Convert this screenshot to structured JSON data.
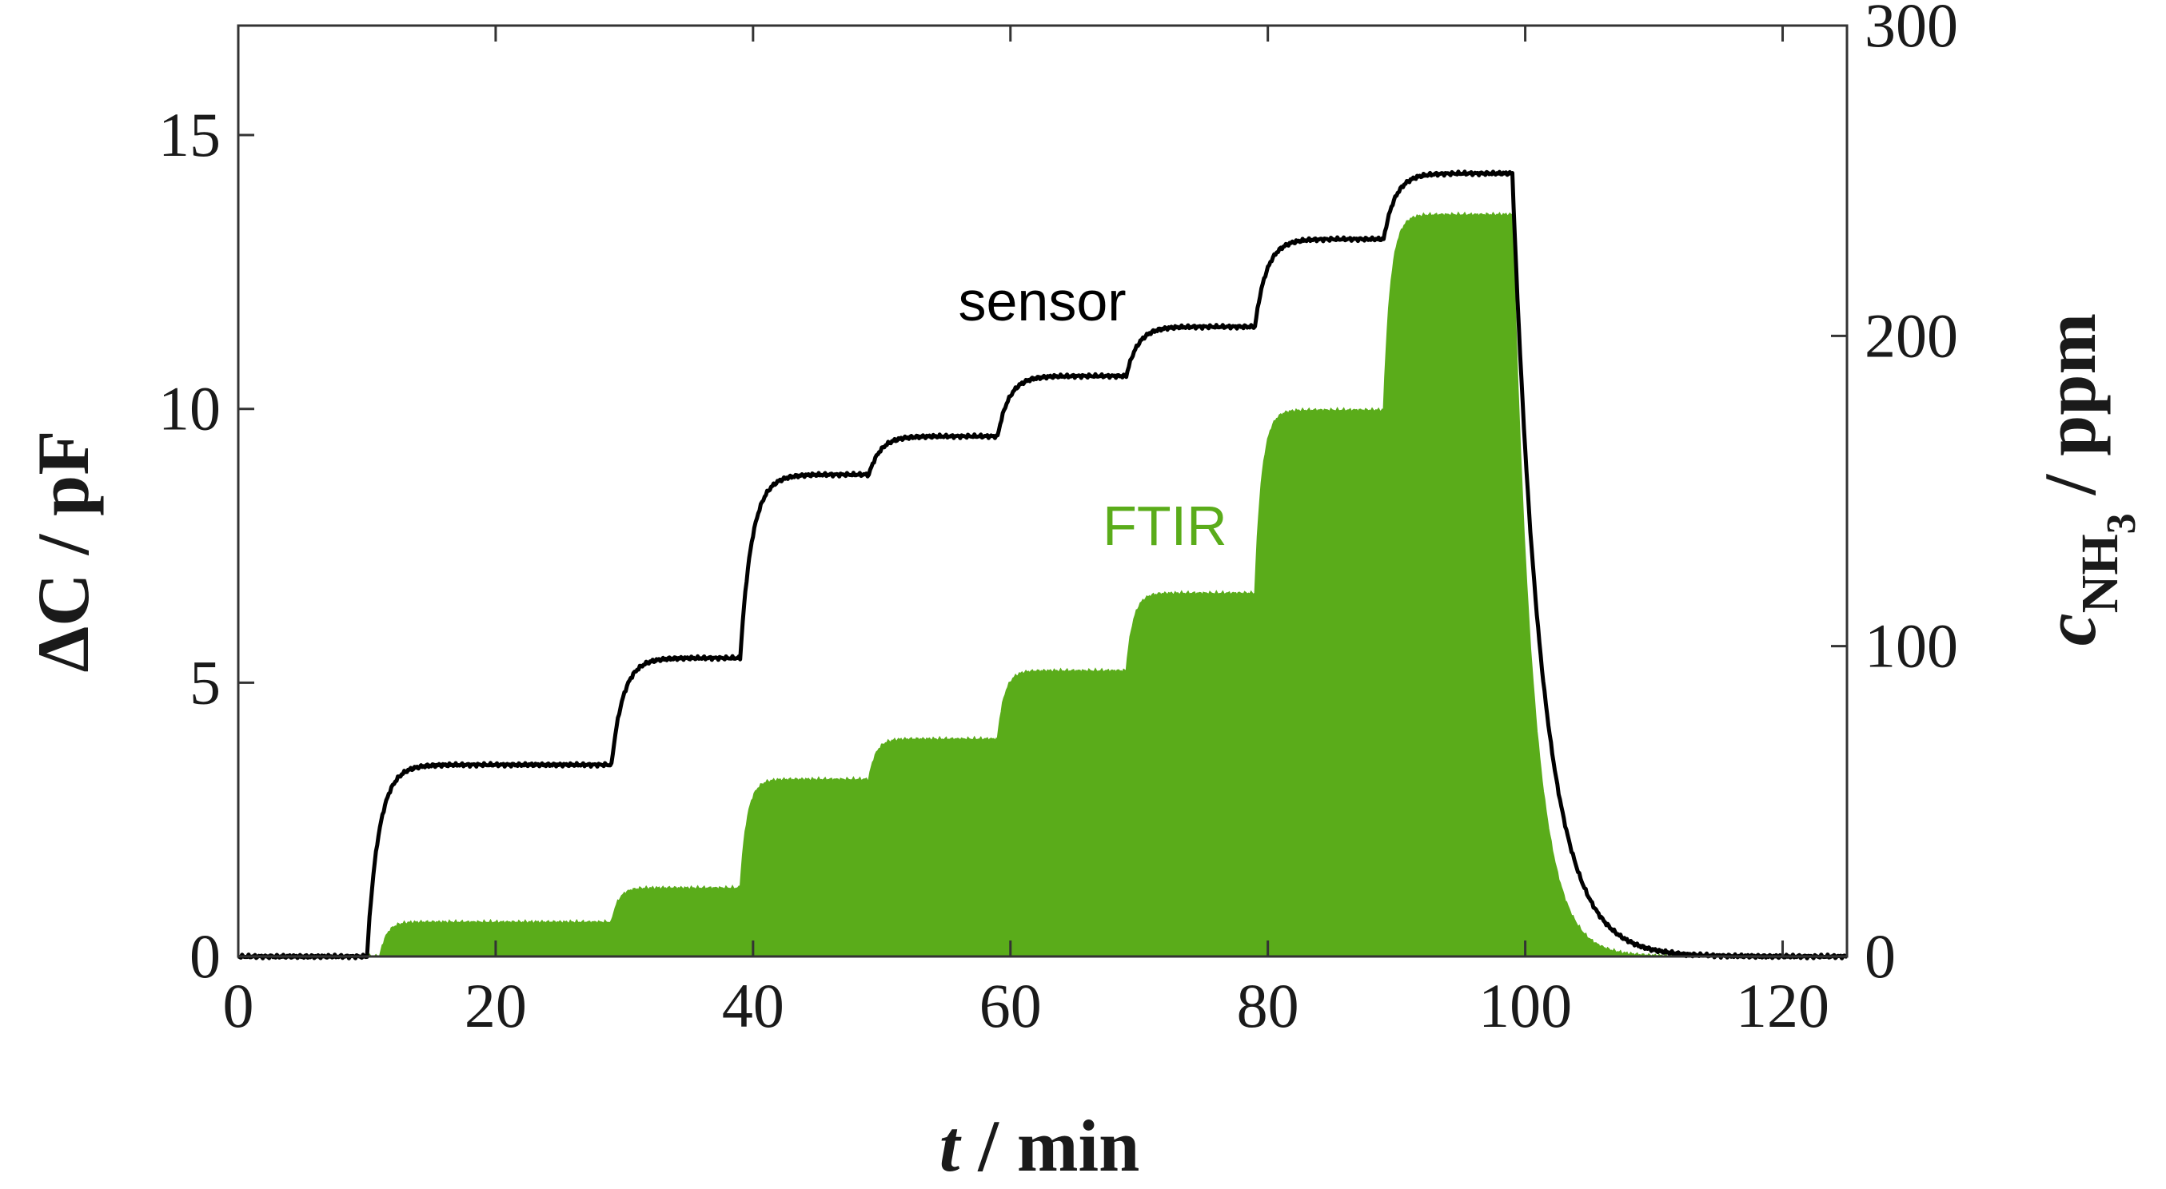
{
  "chart_data": {
    "type": "line",
    "title": "",
    "x": {
      "label_var": "t",
      "label_unit": " / min",
      "lim": [
        0,
        125
      ],
      "ticks": [
        0,
        20,
        40,
        60,
        80,
        100,
        120
      ]
    },
    "y_left": {
      "label_var": "ΔC",
      "label_unit": " / pF",
      "lim": [
        0,
        17
      ],
      "ticks": [
        0,
        5,
        10,
        15
      ]
    },
    "y_right": {
      "label_var": "c",
      "label_sub": "NH",
      "label_subsub": "3",
      "label_unit": " / ppm",
      "lim": [
        0,
        300
      ],
      "ticks": [
        0,
        100,
        200,
        300
      ],
      "color": "#5aac1a"
    },
    "series": [
      {
        "name": "sensor",
        "axis": "left",
        "style": "line",
        "color": "#000000",
        "steps": [
          {
            "t": 10,
            "value": 3.5
          },
          {
            "t": 29,
            "value": 5.45
          },
          {
            "t": 39,
            "value": 8.8
          },
          {
            "t": 49,
            "value": 9.5
          },
          {
            "t": 59,
            "value": 10.6
          },
          {
            "t": 69,
            "value": 11.5
          },
          {
            "t": 79,
            "value": 13.1
          },
          {
            "t": 89,
            "value": 14.3
          }
        ],
        "end_t": 99,
        "baseline": 0
      },
      {
        "name": "FTIR",
        "axis": "right",
        "style": "area",
        "color": "#5aac1a",
        "steps": [
          {
            "t": 11,
            "value": 11
          },
          {
            "t": 29,
            "value": 22
          },
          {
            "t": 39,
            "value": 57
          },
          {
            "t": 49,
            "value": 70
          },
          {
            "t": 59,
            "value": 92
          },
          {
            "t": 69,
            "value": 117
          },
          {
            "t": 79,
            "value": 176
          },
          {
            "t": 89,
            "value": 239
          }
        ],
        "end_t": 99,
        "baseline": 0
      }
    ],
    "annotations": [
      {
        "text": "sensor",
        "x": 69,
        "y": 11.5,
        "color": "#000000"
      },
      {
        "text": "FTIR",
        "x": 72,
        "y": 130,
        "axis": "right",
        "color": "#5aac1a"
      }
    ]
  }
}
